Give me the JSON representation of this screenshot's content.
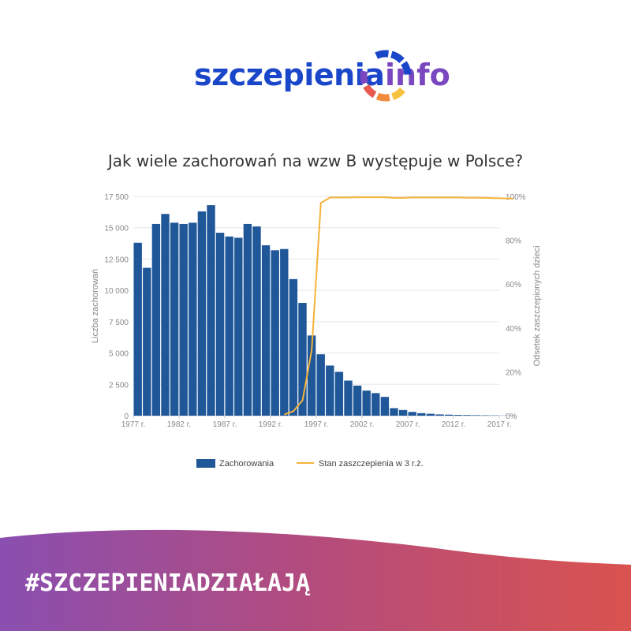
{
  "logo": {
    "word": "szczepienia",
    "suffix": "info"
  },
  "chart_data": {
    "type": "bar",
    "title": "Jak wiele zachorowań na wzw B występuje w Polsce?",
    "x_tick_labels": [
      "1977 r.",
      "1982 r.",
      "1987 r.",
      "1992 r.",
      "1997 r.",
      "2002 r.",
      "2007 r.",
      "2012 r.",
      "2017 r."
    ],
    "y_left": {
      "label": "Liczba zachorowań",
      "ticks": [
        "0",
        "2 500",
        "5 000",
        "7 500",
        "10 000",
        "12 500",
        "15 000",
        "17 500"
      ],
      "lim": [
        0,
        17500
      ]
    },
    "y_right": {
      "label": "Odsetek zaszczepionych dzieci",
      "ticks": [
        "0%",
        "20%",
        "40%",
        "60%",
        "80%",
        "100%"
      ],
      "lim": [
        0,
        100
      ]
    },
    "years": [
      1977,
      1978,
      1979,
      1980,
      1981,
      1982,
      1983,
      1984,
      1985,
      1986,
      1987,
      1988,
      1989,
      1990,
      1991,
      1992,
      1993,
      1994,
      1995,
      1996,
      1997,
      1998,
      1999,
      2000,
      2001,
      2002,
      2003,
      2004,
      2005,
      2006,
      2007,
      2008,
      2009,
      2010,
      2011,
      2012,
      2013,
      2014,
      2015,
      2016,
      2017,
      2018
    ],
    "series": [
      {
        "name": "Zachorowania",
        "kind": "bar",
        "color": "#1f5799",
        "values": [
          13800,
          11800,
          15300,
          16100,
          15400,
          15300,
          15400,
          16300,
          16800,
          14600,
          14300,
          14200,
          15300,
          15100,
          13600,
          13200,
          13300,
          10900,
          9000,
          6400,
          4900,
          4000,
          3500,
          2800,
          2400,
          2000,
          1800,
          1500,
          600,
          450,
          300,
          200,
          150,
          100,
          80,
          60,
          50,
          40,
          30,
          20,
          15,
          10
        ]
      },
      {
        "name": "Stan zaszczepienia w 3 r.ż.",
        "kind": "line",
        "color": "#f5b33a",
        "x": [
          1993,
          1994,
          1995,
          1996,
          1997,
          1998,
          1999,
          2000,
          2001,
          2002,
          2003,
          2004,
          2005,
          2006,
          2007,
          2008,
          2009,
          2010,
          2011,
          2012,
          2013,
          2014,
          2015,
          2016,
          2017,
          2018
        ],
        "values": [
          0.5,
          2,
          7,
          30,
          97,
          99.5,
          99.5,
          99.5,
          99.6,
          99.6,
          99.6,
          99.6,
          99.3,
          99.3,
          99.5,
          99.5,
          99.5,
          99.5,
          99.5,
          99.5,
          99.4,
          99.4,
          99.3,
          99.2,
          99.1,
          99.0
        ]
      }
    ],
    "legend": "bottom-center",
    "grid": true
  },
  "footer": {
    "hashtag": "#SZCZEPIENIADZIAŁAJĄ"
  }
}
